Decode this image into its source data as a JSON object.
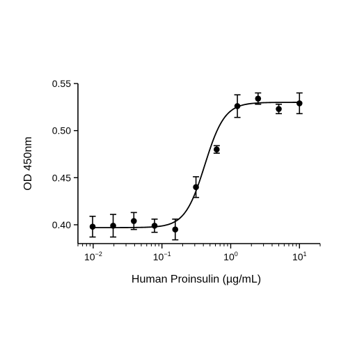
{
  "chart_data": {
    "type": "scatter",
    "title": "",
    "xlabel": "Human Proinsulin (µg/mL)",
    "ylabel": "OD 450nm",
    "x_scale": "log",
    "xlim": [
      0.006,
      20
    ],
    "ylim": [
      0.38,
      0.55
    ],
    "x_ticks": [
      {
        "base": "10",
        "exp": "-2",
        "value": 0.01
      },
      {
        "base": "10",
        "exp": "-1",
        "value": 0.1
      },
      {
        "base": "10",
        "exp": "0",
        "value": 1
      },
      {
        "base": "10",
        "exp": "1",
        "value": 10
      }
    ],
    "y_ticks": [
      {
        "label": "0.40",
        "value": 0.4
      },
      {
        "label": "0.45",
        "value": 0.45
      },
      {
        "label": "0.50",
        "value": 0.5
      },
      {
        "label": "0.55",
        "value": 0.55
      }
    ],
    "grid": false,
    "legend": "none",
    "series": [
      {
        "points": [
          {
            "x": 0.0098,
            "y": 0.398,
            "err": 0.011
          },
          {
            "x": 0.0195,
            "y": 0.399,
            "err": 0.012
          },
          {
            "x": 0.039,
            "y": 0.404,
            "err": 0.009
          },
          {
            "x": 0.078,
            "y": 0.399,
            "err": 0.007
          },
          {
            "x": 0.156,
            "y": 0.395,
            "err": 0.011
          },
          {
            "x": 0.3125,
            "y": 0.44,
            "err": 0.011
          },
          {
            "x": 0.625,
            "y": 0.48,
            "err": 0.004
          },
          {
            "x": 1.25,
            "y": 0.526,
            "err": 0.012
          },
          {
            "x": 2.5,
            "y": 0.534,
            "err": 0.006
          },
          {
            "x": 5.0,
            "y": 0.523,
            "err": 0.005
          },
          {
            "x": 10.0,
            "y": 0.529,
            "err": 0.011
          }
        ],
        "fit": {
          "model": "4PL",
          "bottom": 0.397,
          "top": 0.53,
          "ec50": 0.42,
          "hill": 3.0
        }
      }
    ],
    "colors": {
      "marker": "#000000",
      "line": "#000000"
    }
  }
}
